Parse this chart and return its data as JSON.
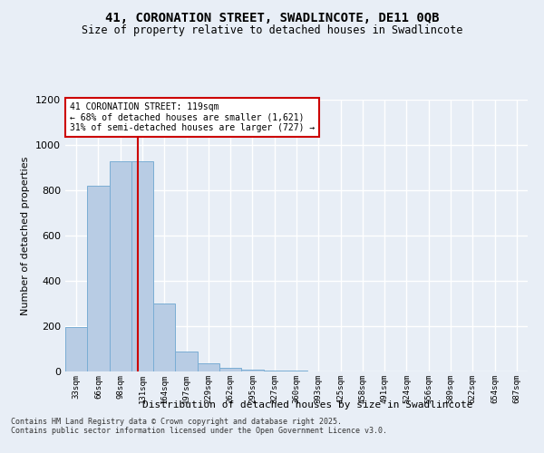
{
  "title1": "41, CORONATION STREET, SWADLINCOTE, DE11 0QB",
  "title2": "Size of property relative to detached houses in Swadlincote",
  "xlabel": "Distribution of detached houses by size in Swadlincote",
  "ylabel": "Number of detached properties",
  "categories": [
    "33sqm",
    "66sqm",
    "98sqm",
    "131sqm",
    "164sqm",
    "197sqm",
    "229sqm",
    "262sqm",
    "295sqm",
    "327sqm",
    "360sqm",
    "393sqm",
    "425sqm",
    "458sqm",
    "491sqm",
    "524sqm",
    "556sqm",
    "589sqm",
    "622sqm",
    "654sqm",
    "687sqm"
  ],
  "values": [
    197,
    820,
    930,
    930,
    300,
    90,
    35,
    17,
    10,
    5,
    5,
    0,
    0,
    0,
    0,
    0,
    0,
    0,
    0,
    0,
    0
  ],
  "bar_color": "#b8cce4",
  "bar_edge_color": "#7aadd4",
  "annotation_text": "41 CORONATION STREET: 119sqm\n← 68% of detached houses are smaller (1,621)\n31% of semi-detached houses are larger (727) →",
  "annotation_box_color": "#ffffff",
  "annotation_box_edge": "#cc0000",
  "vline_color": "#cc0000",
  "background_color": "#e8eef6",
  "grid_color": "#ffffff",
  "ylim": [
    0,
    1200
  ],
  "yticks": [
    0,
    200,
    400,
    600,
    800,
    1000,
    1200
  ],
  "vline_x_index": 2.78,
  "footer_line1": "Contains HM Land Registry data © Crown copyright and database right 2025.",
  "footer_line2": "Contains public sector information licensed under the Open Government Licence v3.0."
}
